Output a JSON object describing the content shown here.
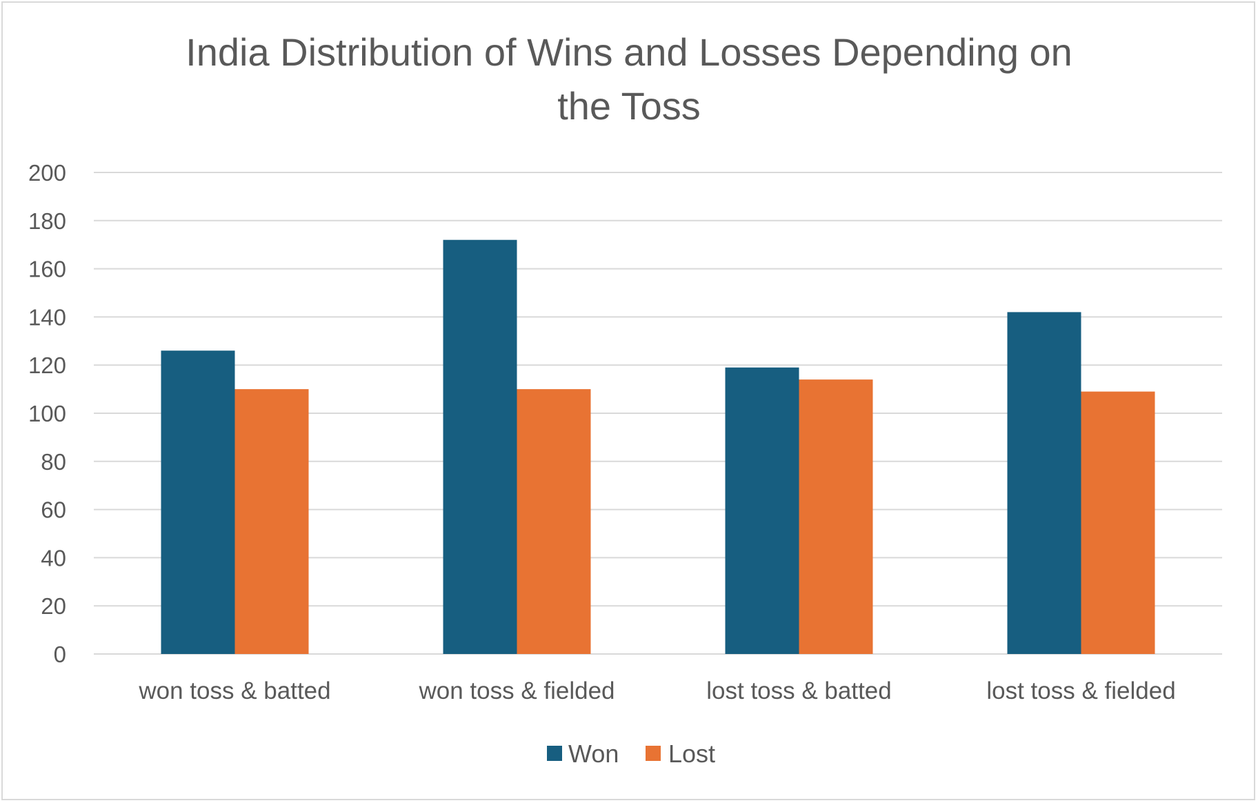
{
  "chart_data": {
    "type": "bar",
    "title_lines": [
      "India Distribution of Wins and Losses Depending on",
      "the Toss"
    ],
    "categories": [
      "won toss & batted",
      "won toss & fielded",
      "lost toss & batted",
      "lost toss & fielded"
    ],
    "series": [
      {
        "name": "Won",
        "color": "#175e80",
        "values": [
          126,
          172,
          119,
          142
        ]
      },
      {
        "name": "Lost",
        "color": "#e87333",
        "values": [
          110,
          110,
          114,
          109
        ]
      }
    ],
    "ylim": [
      0,
      200
    ],
    "yticks": [
      "0",
      "20",
      "40",
      "60",
      "80",
      "100",
      "120",
      "140",
      "160",
      "180",
      "200"
    ],
    "grid": true,
    "legend_position": "bottom",
    "gridline_color": "#d9d9d9"
  }
}
